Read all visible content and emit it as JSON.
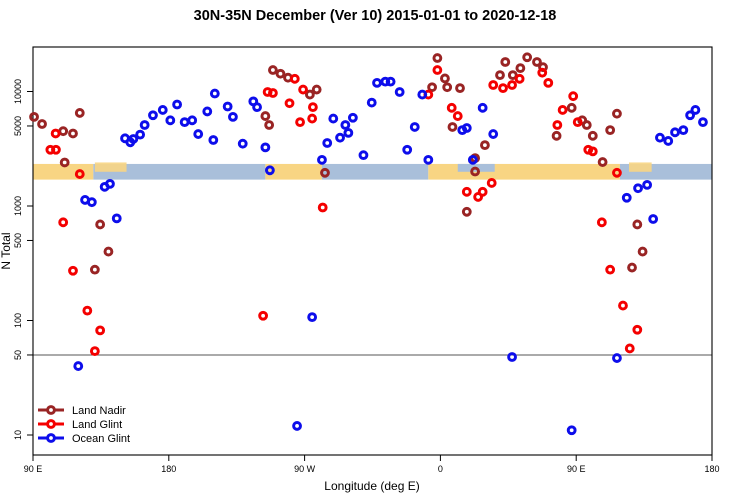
{
  "title": "30N-35N December (Ver 10)   2015-01-01 to 2020-12-18",
  "chart_data": {
    "type": "scatter",
    "title": "30N-35N December (Ver 10)   2015-01-01 to 2020-12-18",
    "xlabel": "Longitude (deg E)",
    "ylabel": "N Total",
    "y_scale": "log",
    "y_ticks": [
      10,
      50,
      100,
      500,
      1000,
      5000,
      10000
    ],
    "y_range": [
      7,
      24500
    ],
    "reference_line_y": 50,
    "x_axis": {
      "span_deg": 450,
      "ticks": [
        {
          "deg": 0,
          "label": "90 E"
        },
        {
          "deg": 90,
          "label": "180"
        },
        {
          "deg": 180,
          "label": "90 W"
        },
        {
          "deg": 270,
          "label": "0"
        },
        {
          "deg": 360,
          "label": "90 E"
        },
        {
          "deg": 450,
          "label": "180"
        }
      ]
    },
    "map_band": {
      "value_top": 2330,
      "value_bottom": 1700,
      "land_color": "#F8D583",
      "ocean_color": "#A9BFDA",
      "segments": [
        {
          "type": "land",
          "from": 0,
          "to": 40
        },
        {
          "type": "ocean",
          "from": 40,
          "to": 154
        },
        {
          "type": "land",
          "from": 154,
          "to": 191.5
        },
        {
          "type": "ocean",
          "from": 191.5,
          "to": 262
        },
        {
          "type": "land",
          "from": 262,
          "to": 389
        },
        {
          "type": "ocean",
          "from": 389,
          "to": 450
        }
      ],
      "island_patches": [
        [
          41,
          62
        ],
        [
          395,
          410
        ]
      ],
      "sea_patches": [
        [
          281.5,
          306
        ]
      ]
    },
    "legend": {
      "position": "bottom-left",
      "entries": [
        "Land Nadir",
        "Land Glint",
        "Ocean Glint"
      ]
    },
    "series": [
      {
        "name": "Land Nadir",
        "color": "#992424",
        "points": [
          [
            0.7,
            6000
          ],
          [
            6,
            5200
          ],
          [
            20,
            4500
          ],
          [
            26.5,
            4300
          ],
          [
            31,
            6500
          ],
          [
            21,
            2400
          ],
          [
            44.5,
            690
          ],
          [
            50,
            400
          ],
          [
            41,
            278
          ],
          [
            154,
            6100
          ],
          [
            156.5,
            5100
          ],
          [
            159,
            15400
          ],
          [
            164,
            14300
          ],
          [
            169,
            13200
          ],
          [
            183.5,
            9400
          ],
          [
            188,
            10400
          ],
          [
            193.5,
            1950
          ],
          [
            268,
            19600
          ],
          [
            273,
            13000
          ],
          [
            264.5,
            10900
          ],
          [
            274.5,
            10900
          ],
          [
            283,
            10700
          ],
          [
            278,
            4900
          ],
          [
            299.5,
            3400
          ],
          [
            293,
            2620
          ],
          [
            293,
            2000
          ],
          [
            287.5,
            890
          ],
          [
            313,
            18100
          ],
          [
            309.5,
            13900
          ],
          [
            327.5,
            19900
          ],
          [
            334,
            18100
          ],
          [
            338,
            16300
          ],
          [
            323,
            16000
          ],
          [
            318,
            13900
          ],
          [
            357,
            7200
          ],
          [
            364,
            5600
          ],
          [
            367,
            5100
          ],
          [
            347,
            4100
          ],
          [
            371,
            4100
          ],
          [
            382.5,
            4600
          ],
          [
            387,
            6400
          ],
          [
            377.5,
            2420
          ],
          [
            400.5,
            690
          ],
          [
            404,
            400
          ],
          [
            397,
            290
          ]
        ]
      },
      {
        "name": "Land Glint",
        "color": "#F40000",
        "points": [
          [
            15,
            4300
          ],
          [
            11.5,
            3100
          ],
          [
            15.2,
            3100
          ],
          [
            31,
            1900
          ],
          [
            20,
            720
          ],
          [
            26.5,
            272
          ],
          [
            36,
            122
          ],
          [
            44.5,
            82
          ],
          [
            41,
            54
          ],
          [
            152.5,
            110
          ],
          [
            155.5,
            9900
          ],
          [
            173.5,
            12900
          ],
          [
            179,
            10400
          ],
          [
            159,
            9700
          ],
          [
            170,
            7900
          ],
          [
            185.5,
            7300
          ],
          [
            185,
            5800
          ],
          [
            177,
            5400
          ],
          [
            192,
            970
          ],
          [
            268,
            15400
          ],
          [
            262,
            9400
          ],
          [
            277.5,
            7200
          ],
          [
            281.5,
            6100
          ],
          [
            305,
            11400
          ],
          [
            311.5,
            10700
          ],
          [
            304,
            1590
          ],
          [
            298,
            1330
          ],
          [
            287.5,
            1330
          ],
          [
            295,
            1200
          ],
          [
            337.5,
            14600
          ],
          [
            341.5,
            11900
          ],
          [
            322.5,
            12900
          ],
          [
            317.5,
            11400
          ],
          [
            358,
            9100
          ],
          [
            351,
            6900
          ],
          [
            361,
            5400
          ],
          [
            347.5,
            5100
          ],
          [
            368,
            3100
          ],
          [
            371,
            3000
          ],
          [
            387,
            1950
          ],
          [
            377,
            720
          ],
          [
            382.5,
            278
          ],
          [
            391,
            135
          ],
          [
            400.5,
            83
          ],
          [
            395.5,
            57
          ]
        ]
      },
      {
        "name": "Ocean Glint",
        "color": "#0D0DEB",
        "points": [
          [
            74,
            5100
          ],
          [
            66.5,
            3850
          ],
          [
            71,
            4200
          ],
          [
            61,
            3900
          ],
          [
            64.5,
            3600
          ],
          [
            47.5,
            1470
          ],
          [
            51,
            1560
          ],
          [
            34.5,
            1130
          ],
          [
            39,
            1080
          ],
          [
            55.5,
            780
          ],
          [
            30,
            40
          ],
          [
            79.5,
            6200
          ],
          [
            86,
            6900
          ],
          [
            91,
            5600
          ],
          [
            95.5,
            7700
          ],
          [
            100.5,
            5400
          ],
          [
            105.5,
            5600
          ],
          [
            109.5,
            4250
          ],
          [
            115.5,
            6700
          ],
          [
            120.5,
            9600
          ],
          [
            129,
            7400
          ],
          [
            132.5,
            6000
          ],
          [
            119.5,
            3770
          ],
          [
            139,
            3500
          ],
          [
            146,
            8200
          ],
          [
            148.5,
            7300
          ],
          [
            154,
            3250
          ],
          [
            157,
            2050
          ],
          [
            199,
            5800
          ],
          [
            207,
            5100
          ],
          [
            212,
            5900
          ],
          [
            209,
            4350
          ],
          [
            203.5,
            3950
          ],
          [
            195,
            3550
          ],
          [
            191.5,
            2530
          ],
          [
            219,
            2780
          ],
          [
            224.5,
            8000
          ],
          [
            228,
            11900
          ],
          [
            233.5,
            12200
          ],
          [
            237,
            12200
          ],
          [
            185,
            107
          ],
          [
            175,
            12
          ],
          [
            243,
            9900
          ],
          [
            258,
            9400
          ],
          [
            253,
            4900
          ],
          [
            248,
            3100
          ],
          [
            262,
            2530
          ],
          [
            298,
            7200
          ],
          [
            287.5,
            4800
          ],
          [
            284.5,
            4600
          ],
          [
            305,
            4250
          ],
          [
            291.5,
            2530
          ],
          [
            317.5,
            48
          ],
          [
            387,
            47
          ],
          [
            357,
            11
          ],
          [
            415.5,
            3950
          ],
          [
            421,
            3700
          ],
          [
            425.5,
            4400
          ],
          [
            431,
            4600
          ],
          [
            435.5,
            6200
          ],
          [
            439,
            6900
          ],
          [
            444,
            5400
          ],
          [
            401,
            1430
          ],
          [
            407,
            1530
          ],
          [
            393.5,
            1180
          ],
          [
            411,
            770
          ]
        ]
      }
    ]
  }
}
